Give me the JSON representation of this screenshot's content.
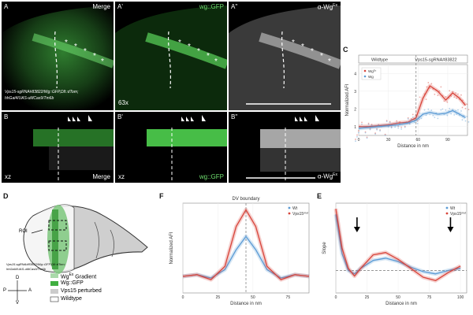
{
  "figure": {
    "panels": {
      "A": {
        "label": "A",
        "title": "Merge",
        "genotype_l1": "Vps15-sgRNA#83822/Wg::GFP,Dll::dTom;",
        "genotype_l2": "hhGal4/UAS-uMCas9/Tm6b"
      },
      "A1": {
        "label": "A'",
        "title": "wg::GFP",
        "mag": "63x"
      },
      "A2": {
        "label": "A\"",
        "title": "α-Wg",
        "title_sup": "Ex"
      },
      "B": {
        "label": "B",
        "corner": "xz",
        "title": "Merge"
      },
      "B1": {
        "label": "B'",
        "corner": "xz",
        "title": "wg::GFP"
      },
      "B2": {
        "label": "B\"",
        "title": "α-Wg",
        "title_sup": "Ex"
      },
      "C": {
        "label": "C",
        "header_left": "Wildtype",
        "header_right": "Vps15-sgRNA#83822",
        "legend": [
          "Wg^Ex",
          "Wg"
        ],
        "xlabel": "Distance in nm",
        "ylabel": "Normalized AFI"
      },
      "D": {
        "label": "D",
        "roi": "ROI",
        "genotype_l1": "Vps15-sgRNA#83822/Wg::GFP,Dll::dTom;",
        "genotype_l2": "hhGal4/UAS-uMCas9/Tm6b",
        "axis_d": "D",
        "axis_v": "V",
        "axis_p": "P",
        "axis_a": "A",
        "legend": [
          "Wg^Ex Gradient",
          "Wg::GFP",
          "Vps15 perturbed",
          "Wildtype"
        ]
      },
      "F": {
        "label": "F",
        "title": "DV boundary",
        "xlabel": "Distance in nm",
        "ylabel": "Normalized AFI",
        "legend": [
          "Wt",
          "Vps15^mut"
        ]
      },
      "E": {
        "label": "E",
        "xlabel": "Distance in nm",
        "ylabel": "Slope",
        "legend": [
          "Wt",
          "Vps15^mut"
        ]
      }
    },
    "asterisks": "*"
  },
  "colors": {
    "green": "#3fae3f",
    "red": "#d8443a",
    "blue": "#5b9bd5",
    "gray": "#cccccc"
  },
  "chart_data": [
    {
      "id": "C",
      "type": "line",
      "xlabel": "Distance in nm",
      "ylabel": "Normalized AFI",
      "x_ticks": [
        0,
        30,
        60,
        90
      ],
      "y_ticks": [
        1,
        2,
        3,
        4
      ],
      "xlim": [
        0,
        110
      ],
      "ylim": [
        0.5,
        4.5
      ],
      "series": [
        {
          "name": "Wg^Ex",
          "x": [
            0,
            10,
            20,
            30,
            40,
            50,
            58,
            65,
            72,
            80,
            88,
            95,
            102,
            108
          ],
          "values": [
            1.0,
            1.0,
            1.05,
            1.1,
            1.2,
            1.25,
            1.5,
            2.6,
            3.3,
            3.0,
            2.5,
            2.9,
            2.6,
            2.2
          ]
        },
        {
          "name": "Wg",
          "x": [
            0,
            10,
            20,
            30,
            40,
            50,
            58,
            65,
            72,
            80,
            88,
            95,
            102,
            108
          ],
          "values": [
            0.9,
            0.95,
            1.0,
            1.05,
            1.1,
            1.2,
            1.35,
            1.7,
            1.8,
            1.7,
            1.75,
            1.9,
            1.7,
            1.5
          ]
        }
      ]
    },
    {
      "id": "F",
      "type": "line",
      "title": "DV boundary",
      "xlabel": "Distance in nm",
      "ylabel": "Normalized AFI",
      "x_ticks": [
        0,
        25,
        50,
        75
      ],
      "xlim": [
        0,
        90
      ],
      "ylim": [
        0.5,
        3.2
      ],
      "series": [
        {
          "name": "Wt",
          "x": [
            0,
            10,
            20,
            30,
            38,
            45,
            52,
            60,
            70,
            80,
            90
          ],
          "values": [
            1.0,
            1.05,
            0.95,
            1.2,
            1.8,
            2.2,
            1.8,
            1.2,
            0.95,
            1.05,
            1.0
          ]
        },
        {
          "name": "Vps15^mut",
          "x": [
            0,
            10,
            20,
            30,
            38,
            45,
            52,
            60,
            70,
            80,
            90
          ],
          "values": [
            1.0,
            1.05,
            0.9,
            1.3,
            2.5,
            3.0,
            2.5,
            1.3,
            0.9,
            1.05,
            1.0
          ]
        }
      ],
      "annotations": [
        {
          "type": "vline",
          "x": 45
        }
      ]
    },
    {
      "id": "E",
      "type": "line",
      "xlabel": "Distance in nm",
      "ylabel": "Slope",
      "x_ticks": [
        0,
        25,
        50,
        75,
        100
      ],
      "xlim": [
        0,
        105
      ],
      "ylim": [
        -0.2,
        0.6
      ],
      "series": [
        {
          "name": "Wt",
          "x": [
            0,
            5,
            10,
            15,
            20,
            30,
            40,
            50,
            60,
            70,
            80,
            90,
            100
          ],
          "values": [
            0.5,
            0.15,
            0.0,
            -0.03,
            0.02,
            0.09,
            0.11,
            0.08,
            0.03,
            -0.01,
            -0.03,
            0.0,
            0.02
          ]
        },
        {
          "name": "Vps15^mut",
          "x": [
            0,
            5,
            10,
            15,
            20,
            30,
            40,
            50,
            60,
            70,
            80,
            90,
            100
          ],
          "values": [
            0.55,
            0.2,
            0.02,
            -0.05,
            0.02,
            0.14,
            0.16,
            0.1,
            0.02,
            -0.06,
            -0.09,
            -0.02,
            0.04
          ]
        }
      ],
      "annotations": [
        {
          "type": "hline",
          "y": 0
        },
        {
          "type": "arrow",
          "x": 17
        },
        {
          "type": "arrow",
          "x": 92
        }
      ]
    }
  ]
}
